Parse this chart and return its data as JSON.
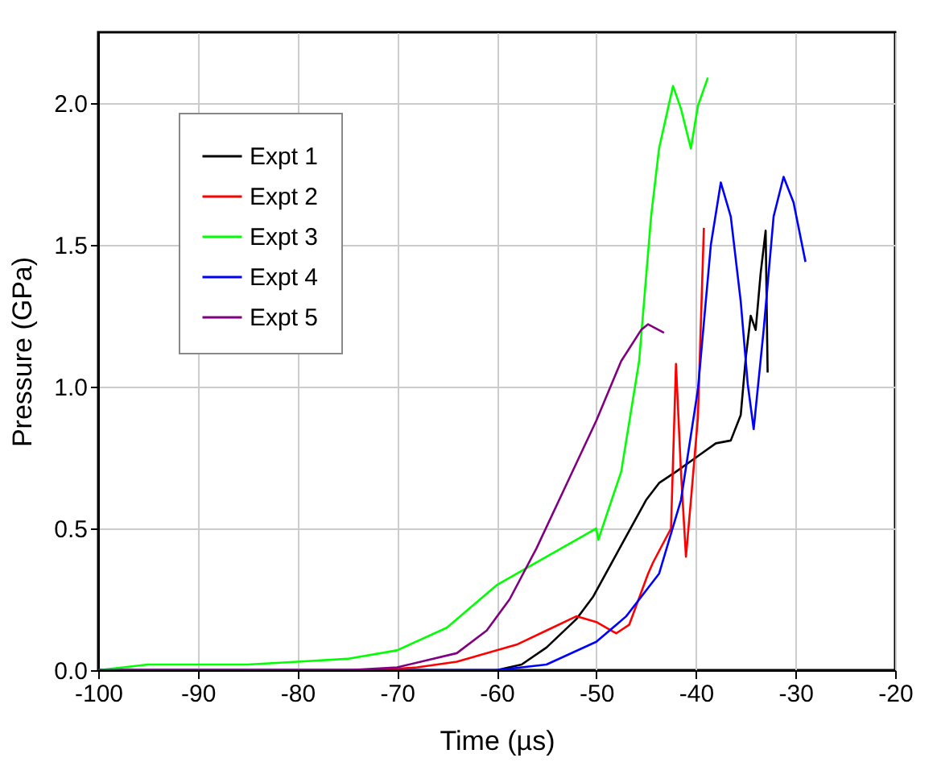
{
  "chart_data": {
    "type": "line",
    "xlabel": "Time (µs)",
    "ylabel": "Pressure (GPa)",
    "xlim": [
      -100,
      -20
    ],
    "ylim": [
      0,
      2.25
    ],
    "xticks": [
      -100,
      -90,
      -80,
      -70,
      -60,
      -50,
      -40,
      -30,
      -20
    ],
    "yticks": [
      {
        "value": 0,
        "label": "0.0"
      },
      0.5,
      {
        "value": 1,
        "label": "1.0"
      },
      1.5,
      {
        "value": 2,
        "label": "2.0"
      }
    ],
    "grid": true,
    "legend": "top left",
    "line_style": "solid",
    "marker": "none",
    "series": [
      {
        "name": "Expt 1",
        "color": "#000000",
        "x": [
          -100,
          -65,
          -60,
          -57.5,
          -55,
          -52,
          -50.3,
          -47.5,
          -45,
          -43.7,
          -42,
          -40,
          -38,
          -36.5,
          -35.5,
          -35,
          -34.5,
          -34,
          -33.5,
          -33,
          -32.8
        ],
        "values": [
          0,
          0,
          0.0,
          0.02,
          0.08,
          0.18,
          0.26,
          0.44,
          0.6,
          0.66,
          0.7,
          0.75,
          0.8,
          0.81,
          0.9,
          1.1,
          1.25,
          1.2,
          1.4,
          1.55,
          1.05
        ]
      },
      {
        "name": "Expt 2",
        "color": "#ff0000",
        "x": [
          -100,
          -72,
          -68,
          -64,
          -58,
          -55,
          -52,
          -50,
          -48,
          -46.7,
          -44.8,
          -44.3,
          -42.5,
          -42,
          -41.5,
          -41,
          -40.5,
          -39.8,
          -39.2
        ],
        "values": [
          0,
          0,
          0.01,
          0.03,
          0.09,
          0.14,
          0.19,
          0.17,
          0.13,
          0.16,
          0.34,
          0.38,
          0.5,
          1.08,
          0.7,
          0.4,
          0.6,
          0.89,
          1.56
        ]
      },
      {
        "name": "Expt 3",
        "color": "#00ff00",
        "x": [
          -100,
          -95,
          -90,
          -85,
          -80,
          -75,
          -70,
          -65,
          -60,
          -55,
          -51,
          -50,
          -49.8,
          -47.5,
          -45.7,
          -44.5,
          -43.7,
          -42.3,
          -41.5,
          -40.5,
          -39.8,
          -38.8
        ],
        "values": [
          0,
          0.02,
          0.02,
          0.02,
          0.03,
          0.04,
          0.07,
          0.15,
          0.3,
          0.4,
          0.48,
          0.5,
          0.46,
          0.7,
          1.09,
          1.6,
          1.84,
          2.06,
          1.98,
          1.84,
          1.99,
          2.09
        ]
      },
      {
        "name": "Expt 4",
        "color": "#0000ff",
        "x": [
          -100,
          -60,
          -55,
          -50,
          -47,
          -43.7,
          -41.5,
          -39.8,
          -38.5,
          -37.5,
          -36.5,
          -35.5,
          -34.8,
          -34.2,
          -33.2,
          -32.2,
          -31.2,
          -30.2,
          -29
        ],
        "values": [
          0,
          0,
          0.02,
          0.1,
          0.19,
          0.34,
          0.6,
          0.99,
          1.5,
          1.72,
          1.6,
          1.3,
          1.01,
          0.85,
          1.2,
          1.6,
          1.74,
          1.65,
          1.44
        ]
      },
      {
        "name": "Expt 5",
        "color": "#800080",
        "x": [
          -100,
          -75,
          -70,
          -64,
          -61,
          -58.7,
          -56,
          -53.2,
          -50,
          -47.5,
          -45.5,
          -44.8,
          -43.2
        ],
        "values": [
          0,
          0,
          0.01,
          0.06,
          0.14,
          0.25,
          0.43,
          0.64,
          0.88,
          1.09,
          1.2,
          1.22,
          1.19
        ]
      }
    ]
  }
}
